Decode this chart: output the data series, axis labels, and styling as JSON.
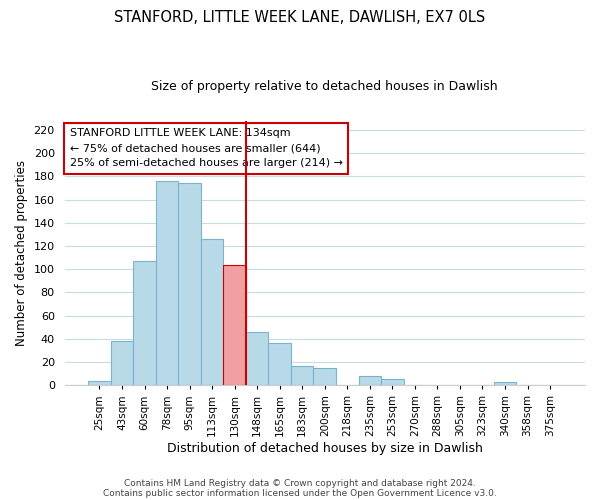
{
  "title": "STANFORD, LITTLE WEEK LANE, DAWLISH, EX7 0LS",
  "subtitle": "Size of property relative to detached houses in Dawlish",
  "xlabel": "Distribution of detached houses by size in Dawlish",
  "ylabel": "Number of detached properties",
  "bin_labels": [
    "25sqm",
    "43sqm",
    "60sqm",
    "78sqm",
    "95sqm",
    "113sqm",
    "130sqm",
    "148sqm",
    "165sqm",
    "183sqm",
    "200sqm",
    "218sqm",
    "235sqm",
    "253sqm",
    "270sqm",
    "288sqm",
    "305sqm",
    "323sqm",
    "340sqm",
    "358sqm",
    "375sqm"
  ],
  "bar_heights": [
    4,
    38,
    107,
    176,
    174,
    126,
    104,
    46,
    36,
    17,
    15,
    0,
    8,
    5,
    0,
    0,
    0,
    0,
    3,
    0,
    0
  ],
  "bar_color": "#b8d9e8",
  "bar_edge_color": "#7ab3cc",
  "highlight_bar_idx": 6,
  "highlight_bar_color": "#f0a0a0",
  "highlight_bar_edge_color": "#cc0000",
  "highlight_line_color": "#cc0000",
  "ylim": [
    0,
    228
  ],
  "yticks": [
    0,
    20,
    40,
    60,
    80,
    100,
    120,
    140,
    160,
    180,
    200,
    220
  ],
  "annotation_title": "STANFORD LITTLE WEEK LANE: 134sqm",
  "annotation_line1": "← 75% of detached houses are smaller (644)",
  "annotation_line2": "25% of semi-detached houses are larger (214) →",
  "footer_line1": "Contains HM Land Registry data © Crown copyright and database right 2024.",
  "footer_line2": "Contains public sector information licensed under the Open Government Licence v3.0."
}
